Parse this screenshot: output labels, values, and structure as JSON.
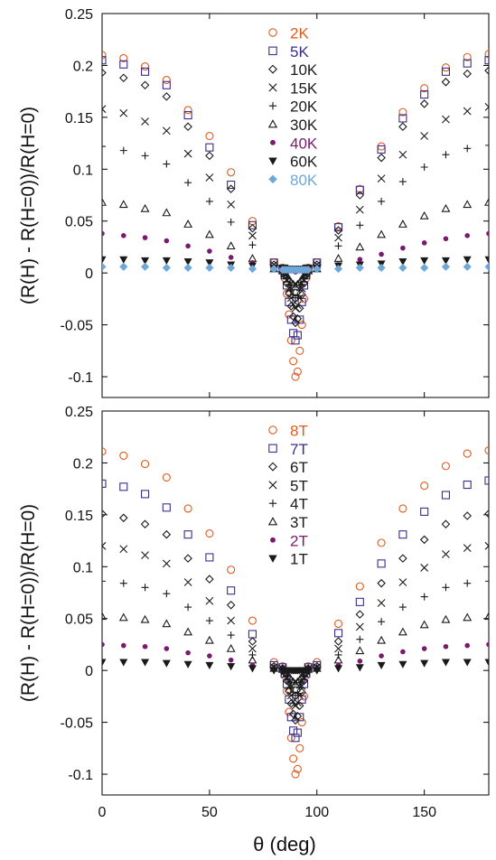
{
  "figure": {
    "xlabel": "θ (deg)"
  },
  "chart_data": [
    {
      "type": "scatter",
      "panel": "top",
      "xlabel": "",
      "ylabel": "(R(H) - R(H=0))/R(H=0)",
      "xlim": [
        0,
        180
      ],
      "ylim": [
        -0.12,
        0.25
      ],
      "x_ticks": [
        0,
        50,
        100,
        150
      ],
      "y_ticks": [
        -0.1,
        -0.05,
        0,
        0.05,
        0.1,
        0.15,
        0.2,
        0.25
      ],
      "y_tick_labels": [
        "-0.1",
        "-0.05",
        "0",
        "0.05",
        "0.1",
        "0.15",
        "0.2",
        "0.25"
      ],
      "grid": false,
      "legend_position": "top-center",
      "x_coarse": [
        0,
        10,
        20,
        30,
        40,
        50,
        60,
        70,
        80,
        100,
        110,
        120,
        130,
        140,
        150,
        160,
        170,
        180
      ],
      "x_center": [
        84,
        85,
        86,
        87,
        88,
        89,
        90,
        91,
        92,
        93,
        94,
        95,
        96
      ],
      "series": [
        {
          "name": "2K",
          "marker": "circle",
          "color": "#e05a1e",
          "label_color": "#e05a1e",
          "coarse": [
            0.21,
            0.207,
            0.199,
            0.186,
            0.157,
            0.132,
            0.097,
            0.05,
            0.01,
            0.01,
            0.045,
            0.081,
            0.122,
            0.155,
            0.178,
            0.198,
            0.208,
            0.211
          ],
          "center": [
            0.005,
            -0.005,
            -0.02,
            -0.04,
            -0.065,
            -0.085,
            -0.1,
            -0.095,
            -0.075,
            -0.05,
            -0.025,
            -0.005,
            0.005
          ]
        },
        {
          "name": "5K",
          "marker": "square",
          "color": "#3a2d8c",
          "label_color": "#3a2d8c",
          "coarse": [
            0.205,
            0.201,
            0.194,
            0.181,
            0.152,
            0.121,
            0.085,
            0.046,
            0.01,
            0.01,
            0.044,
            0.08,
            0.119,
            0.149,
            0.172,
            0.194,
            0.202,
            0.205
          ],
          "center": [
            0.004,
            -0.002,
            -0.012,
            -0.028,
            -0.045,
            -0.058,
            -0.065,
            -0.06,
            -0.045,
            -0.028,
            -0.012,
            -0.002,
            0.004
          ]
        },
        {
          "name": "10K",
          "marker": "diamond",
          "color": "#1a1a1a",
          "label_color": "#1a1a1a",
          "coarse": [
            0.193,
            0.188,
            0.181,
            0.17,
            0.141,
            0.113,
            0.081,
            0.043,
            0.008,
            0.008,
            0.041,
            0.075,
            0.111,
            0.141,
            0.163,
            0.184,
            0.192,
            0.195
          ],
          "center": [
            0.003,
            -0.002,
            -0.01,
            -0.02,
            -0.032,
            -0.042,
            -0.048,
            -0.044,
            -0.034,
            -0.021,
            -0.01,
            -0.002,
            0.003
          ]
        },
        {
          "name": "15K",
          "marker": "x",
          "color": "#1a1a1a",
          "label_color": "#1a1a1a",
          "coarse": [
            0.158,
            0.154,
            0.146,
            0.137,
            0.115,
            0.092,
            0.066,
            0.036,
            0.008,
            0.008,
            0.034,
            0.061,
            0.091,
            0.114,
            0.132,
            0.148,
            0.156,
            0.16
          ],
          "center": [
            0.003,
            -0.001,
            -0.007,
            -0.015,
            -0.024,
            -0.03,
            -0.034,
            -0.031,
            -0.024,
            -0.015,
            -0.007,
            -0.001,
            0.003
          ]
        },
        {
          "name": "20K",
          "marker": "plus",
          "color": "#1a1a1a",
          "label_color": "#1a1a1a",
          "coarse": [
            0.122,
            0.118,
            0.113,
            0.105,
            0.087,
            0.069,
            0.049,
            0.027,
            0.006,
            0.006,
            0.026,
            0.046,
            0.069,
            0.088,
            0.102,
            0.114,
            0.12,
            0.123
          ],
          "center": [
            0.002,
            -0.001,
            -0.005,
            -0.011,
            -0.017,
            -0.021,
            -0.024,
            -0.022,
            -0.017,
            -0.011,
            -0.005,
            -0.001,
            0.002
          ]
        },
        {
          "name": "30K",
          "marker": "triangle-up",
          "color": "#1a1a1a",
          "label_color": "#1a1a1a",
          "coarse": [
            0.068,
            0.066,
            0.062,
            0.058,
            0.047,
            0.037,
            0.026,
            0.014,
            0.004,
            0.004,
            0.014,
            0.025,
            0.037,
            0.047,
            0.055,
            0.062,
            0.066,
            0.068
          ],
          "center": [
            0.002,
            0.0,
            -0.003,
            -0.006,
            -0.009,
            -0.011,
            -0.013,
            -0.011,
            -0.009,
            -0.006,
            -0.003,
            0.0,
            0.002
          ]
        },
        {
          "name": "40K",
          "marker": "dot",
          "color": "#7a1a6e",
          "label_color": "#7a1a6e",
          "coarse": [
            0.038,
            0.036,
            0.034,
            0.031,
            0.026,
            0.021,
            0.015,
            0.01,
            0.004,
            0.004,
            0.008,
            0.013,
            0.018,
            0.024,
            0.029,
            0.033,
            0.036,
            0.038
          ],
          "center": [
            0.004,
            0.004,
            0.003,
            0.003,
            0.002,
            0.002,
            0.001,
            0.002,
            0.002,
            0.003,
            0.003,
            0.004,
            0.004
          ]
        },
        {
          "name": "60K",
          "marker": "triangle-down",
          "color": "#1a1a1a",
          "label_color": "#1a1a1a",
          "coarse": [
            0.013,
            0.013,
            0.012,
            0.012,
            0.011,
            0.01,
            0.008,
            0.007,
            0.005,
            0.005,
            0.007,
            0.008,
            0.009,
            0.011,
            0.012,
            0.012,
            0.013,
            0.013
          ],
          "center": [
            0.005,
            0.005,
            0.004,
            0.004,
            0.004,
            0.004,
            0.004,
            0.004,
            0.004,
            0.004,
            0.004,
            0.005,
            0.005
          ]
        },
        {
          "name": "80K",
          "marker": "filled-diamond",
          "color": "#6fa7d8",
          "label_color": "#6fa7d8",
          "coarse": [
            0.006,
            0.006,
            0.006,
            0.005,
            0.005,
            0.005,
            0.005,
            0.004,
            0.004,
            0.004,
            0.004,
            0.005,
            0.005,
            0.005,
            0.005,
            0.006,
            0.006,
            0.006
          ],
          "center": [
            0.003,
            0.003,
            0.003,
            0.003,
            0.003,
            0.003,
            0.003,
            0.003,
            0.003,
            0.003,
            0.003,
            0.003,
            0.003
          ]
        }
      ]
    },
    {
      "type": "scatter",
      "panel": "bottom",
      "xlabel": "θ (deg)",
      "ylabel": "(R(H) - R(H=0))/R(H=0)",
      "xlim": [
        0,
        180
      ],
      "ylim": [
        -0.12,
        0.25
      ],
      "x_ticks": [
        0,
        50,
        100,
        150
      ],
      "y_ticks": [
        -0.1,
        -0.05,
        0,
        0.05,
        0.1,
        0.15,
        0.2,
        0.25
      ],
      "y_tick_labels": [
        "-0.1",
        "-0.05",
        "0",
        "0.05",
        "0.1",
        "0.15",
        "0.2",
        "0.25"
      ],
      "grid": false,
      "legend_position": "top-center",
      "x_coarse": [
        0,
        10,
        20,
        30,
        40,
        50,
        60,
        70,
        80,
        100,
        110,
        120,
        130,
        140,
        150,
        160,
        170,
        180
      ],
      "x_center": [
        84,
        85,
        86,
        87,
        88,
        89,
        90,
        91,
        92,
        93,
        94,
        95,
        96
      ],
      "series": [
        {
          "name": "8T",
          "marker": "circle",
          "color": "#e05a1e",
          "label_color": "#e05a1e",
          "coarse": [
            0.211,
            0.207,
            0.199,
            0.186,
            0.156,
            0.132,
            0.097,
            0.048,
            0.008,
            0.008,
            0.045,
            0.081,
            0.123,
            0.156,
            0.178,
            0.197,
            0.209,
            0.212
          ],
          "center": [
            0.004,
            -0.005,
            -0.02,
            -0.04,
            -0.065,
            -0.085,
            -0.1,
            -0.095,
            -0.075,
            -0.05,
            -0.025,
            -0.005,
            0.004
          ]
        },
        {
          "name": "7T",
          "marker": "square",
          "color": "#3a2d8c",
          "label_color": "#3a2d8c",
          "coarse": [
            0.18,
            0.177,
            0.17,
            0.157,
            0.131,
            0.109,
            0.077,
            0.035,
            0.005,
            0.005,
            0.036,
            0.066,
            0.103,
            0.131,
            0.153,
            0.169,
            0.179,
            0.183
          ],
          "center": [
            0.003,
            -0.003,
            -0.013,
            -0.028,
            -0.045,
            -0.058,
            -0.065,
            -0.06,
            -0.045,
            -0.028,
            -0.013,
            -0.003,
            0.003
          ]
        },
        {
          "name": "6T",
          "marker": "diamond",
          "color": "#1a1a1a",
          "label_color": "#1a1a1a",
          "coarse": [
            0.151,
            0.147,
            0.141,
            0.131,
            0.108,
            0.088,
            0.063,
            0.028,
            0.004,
            0.004,
            0.028,
            0.054,
            0.084,
            0.108,
            0.126,
            0.141,
            0.149,
            0.151
          ],
          "center": [
            0.002,
            -0.002,
            -0.01,
            -0.02,
            -0.032,
            -0.042,
            -0.048,
            -0.044,
            -0.034,
            -0.021,
            -0.01,
            -0.002,
            0.002
          ]
        },
        {
          "name": "5T",
          "marker": "x",
          "color": "#1a1a1a",
          "label_color": "#1a1a1a",
          "coarse": [
            0.12,
            0.117,
            0.111,
            0.103,
            0.085,
            0.067,
            0.048,
            0.021,
            0.003,
            0.003,
            0.021,
            0.042,
            0.065,
            0.085,
            0.099,
            0.112,
            0.118,
            0.12
          ],
          "center": [
            0.002,
            -0.001,
            -0.007,
            -0.015,
            -0.024,
            -0.03,
            -0.034,
            -0.031,
            -0.024,
            -0.015,
            -0.007,
            -0.001,
            0.002
          ]
        },
        {
          "name": "4T",
          "marker": "plus",
          "color": "#1a1a1a",
          "label_color": "#1a1a1a",
          "coarse": [
            0.086,
            0.084,
            0.08,
            0.074,
            0.061,
            0.048,
            0.034,
            0.015,
            0.002,
            0.002,
            0.015,
            0.03,
            0.047,
            0.061,
            0.071,
            0.08,
            0.084,
            0.086
          ],
          "center": [
            0.001,
            -0.001,
            -0.005,
            -0.011,
            -0.017,
            -0.021,
            -0.024,
            -0.022,
            -0.017,
            -0.011,
            -0.005,
            -0.001,
            0.001
          ]
        },
        {
          "name": "3T",
          "marker": "triangle-up",
          "color": "#1a1a1a",
          "label_color": "#1a1a1a",
          "coarse": [
            0.052,
            0.051,
            0.049,
            0.045,
            0.037,
            0.029,
            0.021,
            0.01,
            0.002,
            0.002,
            0.01,
            0.019,
            0.029,
            0.037,
            0.044,
            0.049,
            0.051,
            0.052
          ],
          "center": [
            0.001,
            0.0,
            -0.003,
            -0.006,
            -0.009,
            -0.011,
            -0.013,
            -0.011,
            -0.009,
            -0.006,
            -0.003,
            0.0,
            0.001
          ]
        },
        {
          "name": "2T",
          "marker": "dot",
          "color": "#7a1a6e",
          "label_color": "#7a1a6e",
          "coarse": [
            0.025,
            0.024,
            0.023,
            0.021,
            0.017,
            0.014,
            0.01,
            0.005,
            0.001,
            0.001,
            0.005,
            0.009,
            0.014,
            0.018,
            0.021,
            0.023,
            0.024,
            0.025
          ],
          "center": [
            0.001,
            0.001,
            0.0,
            0.0,
            0.0,
            -0.001,
            -0.001,
            -0.001,
            0.0,
            0.0,
            0.0,
            0.001,
            0.001
          ]
        },
        {
          "name": "1T",
          "marker": "triangle-down",
          "color": "#1a1a1a",
          "label_color": "#1a1a1a",
          "coarse": [
            0.008,
            0.008,
            0.008,
            0.007,
            0.006,
            0.005,
            0.004,
            0.002,
            0.0,
            0.0,
            0.002,
            0.003,
            0.005,
            0.006,
            0.007,
            0.008,
            0.008,
            0.008
          ],
          "center": [
            0.0,
            0.0,
            0.0,
            0.0,
            0.0,
            0.0,
            0.0,
            0.0,
            0.0,
            0.0,
            0.0,
            0.0,
            0.0
          ]
        }
      ]
    }
  ]
}
